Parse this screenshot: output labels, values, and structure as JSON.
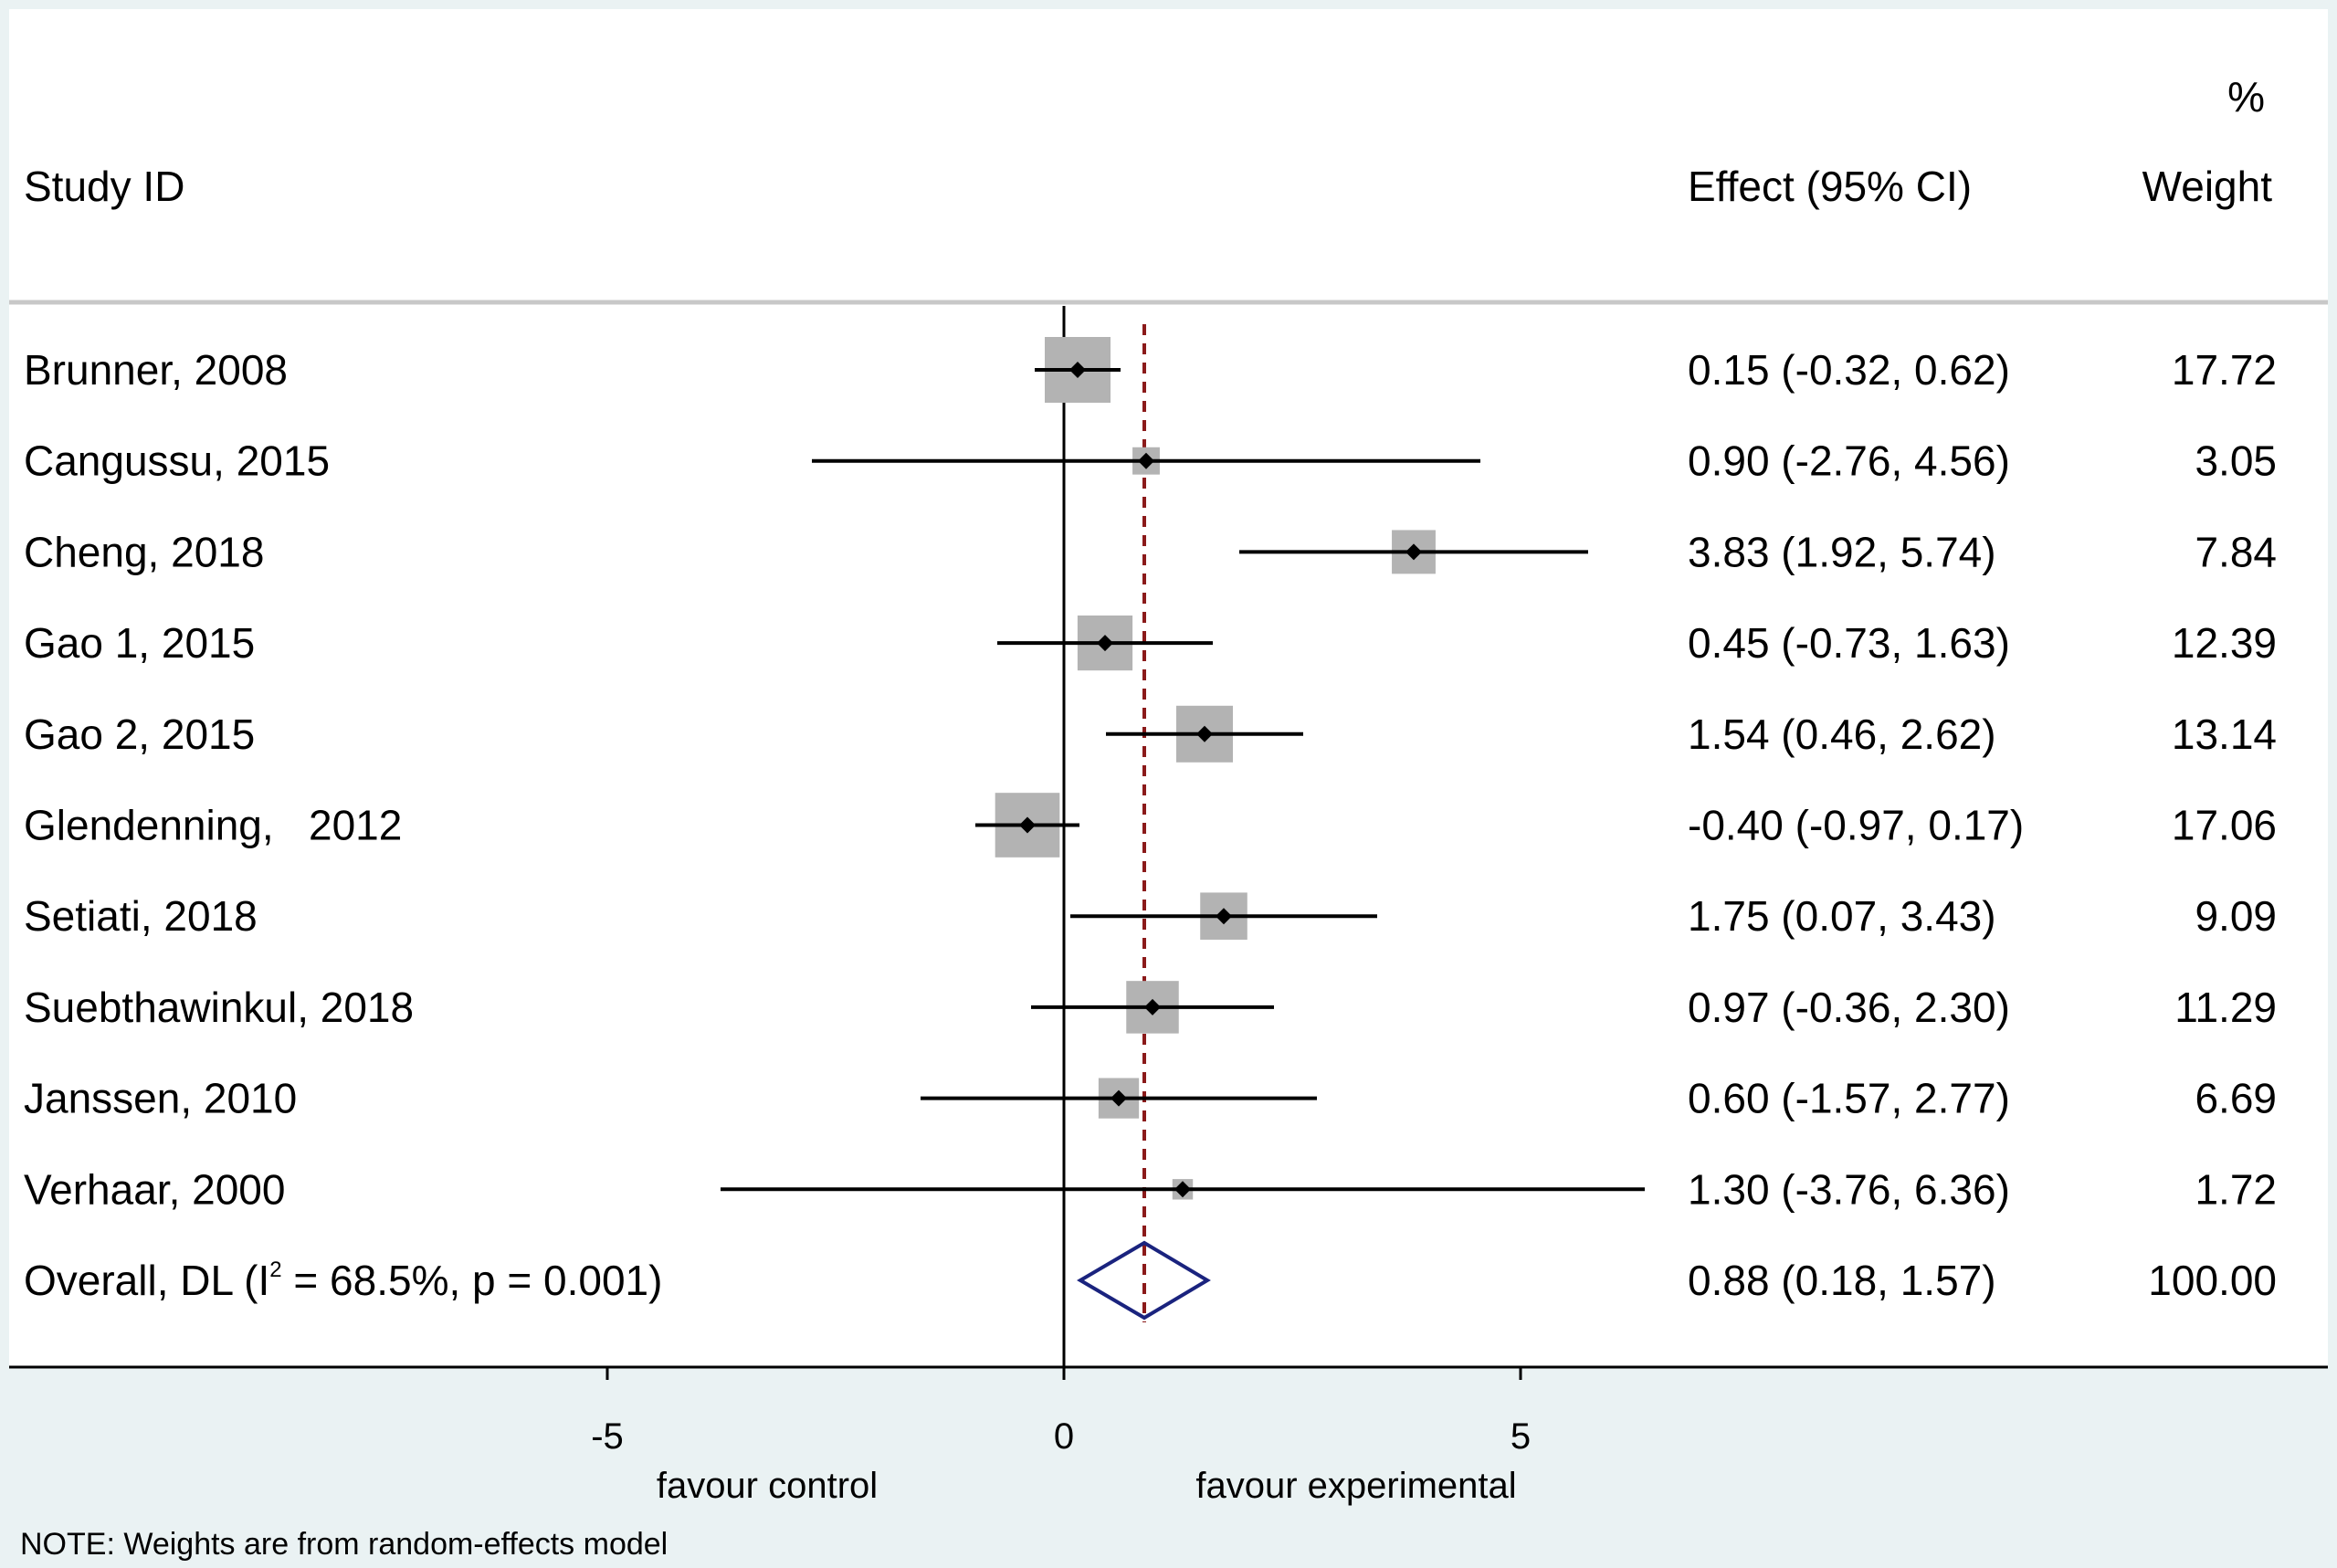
{
  "chart_data": {
    "type": "forest",
    "headers": {
      "study": "Study ID",
      "effect": "Effect (95% CI)",
      "weight_top": "%",
      "weight": "Weight"
    },
    "studies": [
      {
        "label": "Brunner, 2008",
        "effect": 0.15,
        "lo": -0.32,
        "hi": 0.62,
        "weight": 17.72,
        "ci_text": "0.15 (-0.32, 0.62)",
        "weight_text": "17.72"
      },
      {
        "label": "Cangussu, 2015",
        "effect": 0.9,
        "lo": -2.76,
        "hi": 4.56,
        "weight": 3.05,
        "ci_text": "0.90 (-2.76, 4.56)",
        "weight_text": "3.05"
      },
      {
        "label": "Cheng, 2018",
        "effect": 3.83,
        "lo": 1.92,
        "hi": 5.74,
        "weight": 7.84,
        "ci_text": "3.83 (1.92, 5.74)",
        "weight_text": "7.84"
      },
      {
        "label": "Gao 1, 2015",
        "effect": 0.45,
        "lo": -0.73,
        "hi": 1.63,
        "weight": 12.39,
        "ci_text": "0.45 (-0.73, 1.63)",
        "weight_text": "12.39"
      },
      {
        "label": "Gao 2, 2015",
        "effect": 1.54,
        "lo": 0.46,
        "hi": 2.62,
        "weight": 13.14,
        "ci_text": "1.54 (0.46, 2.62)",
        "weight_text": "13.14"
      },
      {
        "label": "Glendenning,   2012",
        "effect": -0.4,
        "lo": -0.97,
        "hi": 0.17,
        "weight": 17.06,
        "ci_text": "-0.40 (-0.97, 0.17)",
        "weight_text": "17.06"
      },
      {
        "label": "Setiati, 2018",
        "effect": 1.75,
        "lo": 0.07,
        "hi": 3.43,
        "weight": 9.09,
        "ci_text": "1.75 (0.07, 3.43)",
        "weight_text": "9.09"
      },
      {
        "label": "Suebthawinkul, 2018",
        "effect": 0.97,
        "lo": -0.36,
        "hi": 2.3,
        "weight": 11.29,
        "ci_text": "0.97 (-0.36, 2.30)",
        "weight_text": "11.29"
      },
      {
        "label": "Janssen, 2010",
        "effect": 0.6,
        "lo": -1.57,
        "hi": 2.77,
        "weight": 6.69,
        "ci_text": "0.60 (-1.57, 2.77)",
        "weight_text": "6.69"
      },
      {
        "label": "Verhaar, 2000",
        "effect": 1.3,
        "lo": -3.76,
        "hi": 6.36,
        "weight": 1.72,
        "ci_text": "1.30 (-3.76, 6.36)",
        "weight_text": "1.72"
      }
    ],
    "overall": {
      "label_prefix": "Overall, DL (I",
      "label_sup": "2",
      "label_suffix": " = 68.5%, p = 0.001)",
      "effect": 0.88,
      "lo": 0.18,
      "hi": 1.57,
      "ci_text": "0.88 (0.18, 1.57)",
      "weight_text": "100.00"
    },
    "x_axis": {
      "range": [
        -11.6,
        13.6
      ],
      "ticks": [
        -5,
        0,
        5
      ],
      "tick_labels": [
        "-5",
        "0",
        "5"
      ],
      "null_line": 0,
      "overall_line": 0.88
    },
    "favour_left": "favour control",
    "favour_right": "favour experimental",
    "note": "NOTE: Weights are from random-effects model",
    "colors": {
      "box": "#b3b3b3",
      "ci_line": "#000000",
      "null_line": "#000000",
      "overall_line": "#8b1a1a",
      "diamond": "#1a237e",
      "background": "#eaf2f3",
      "panel": "#ffffff"
    }
  }
}
